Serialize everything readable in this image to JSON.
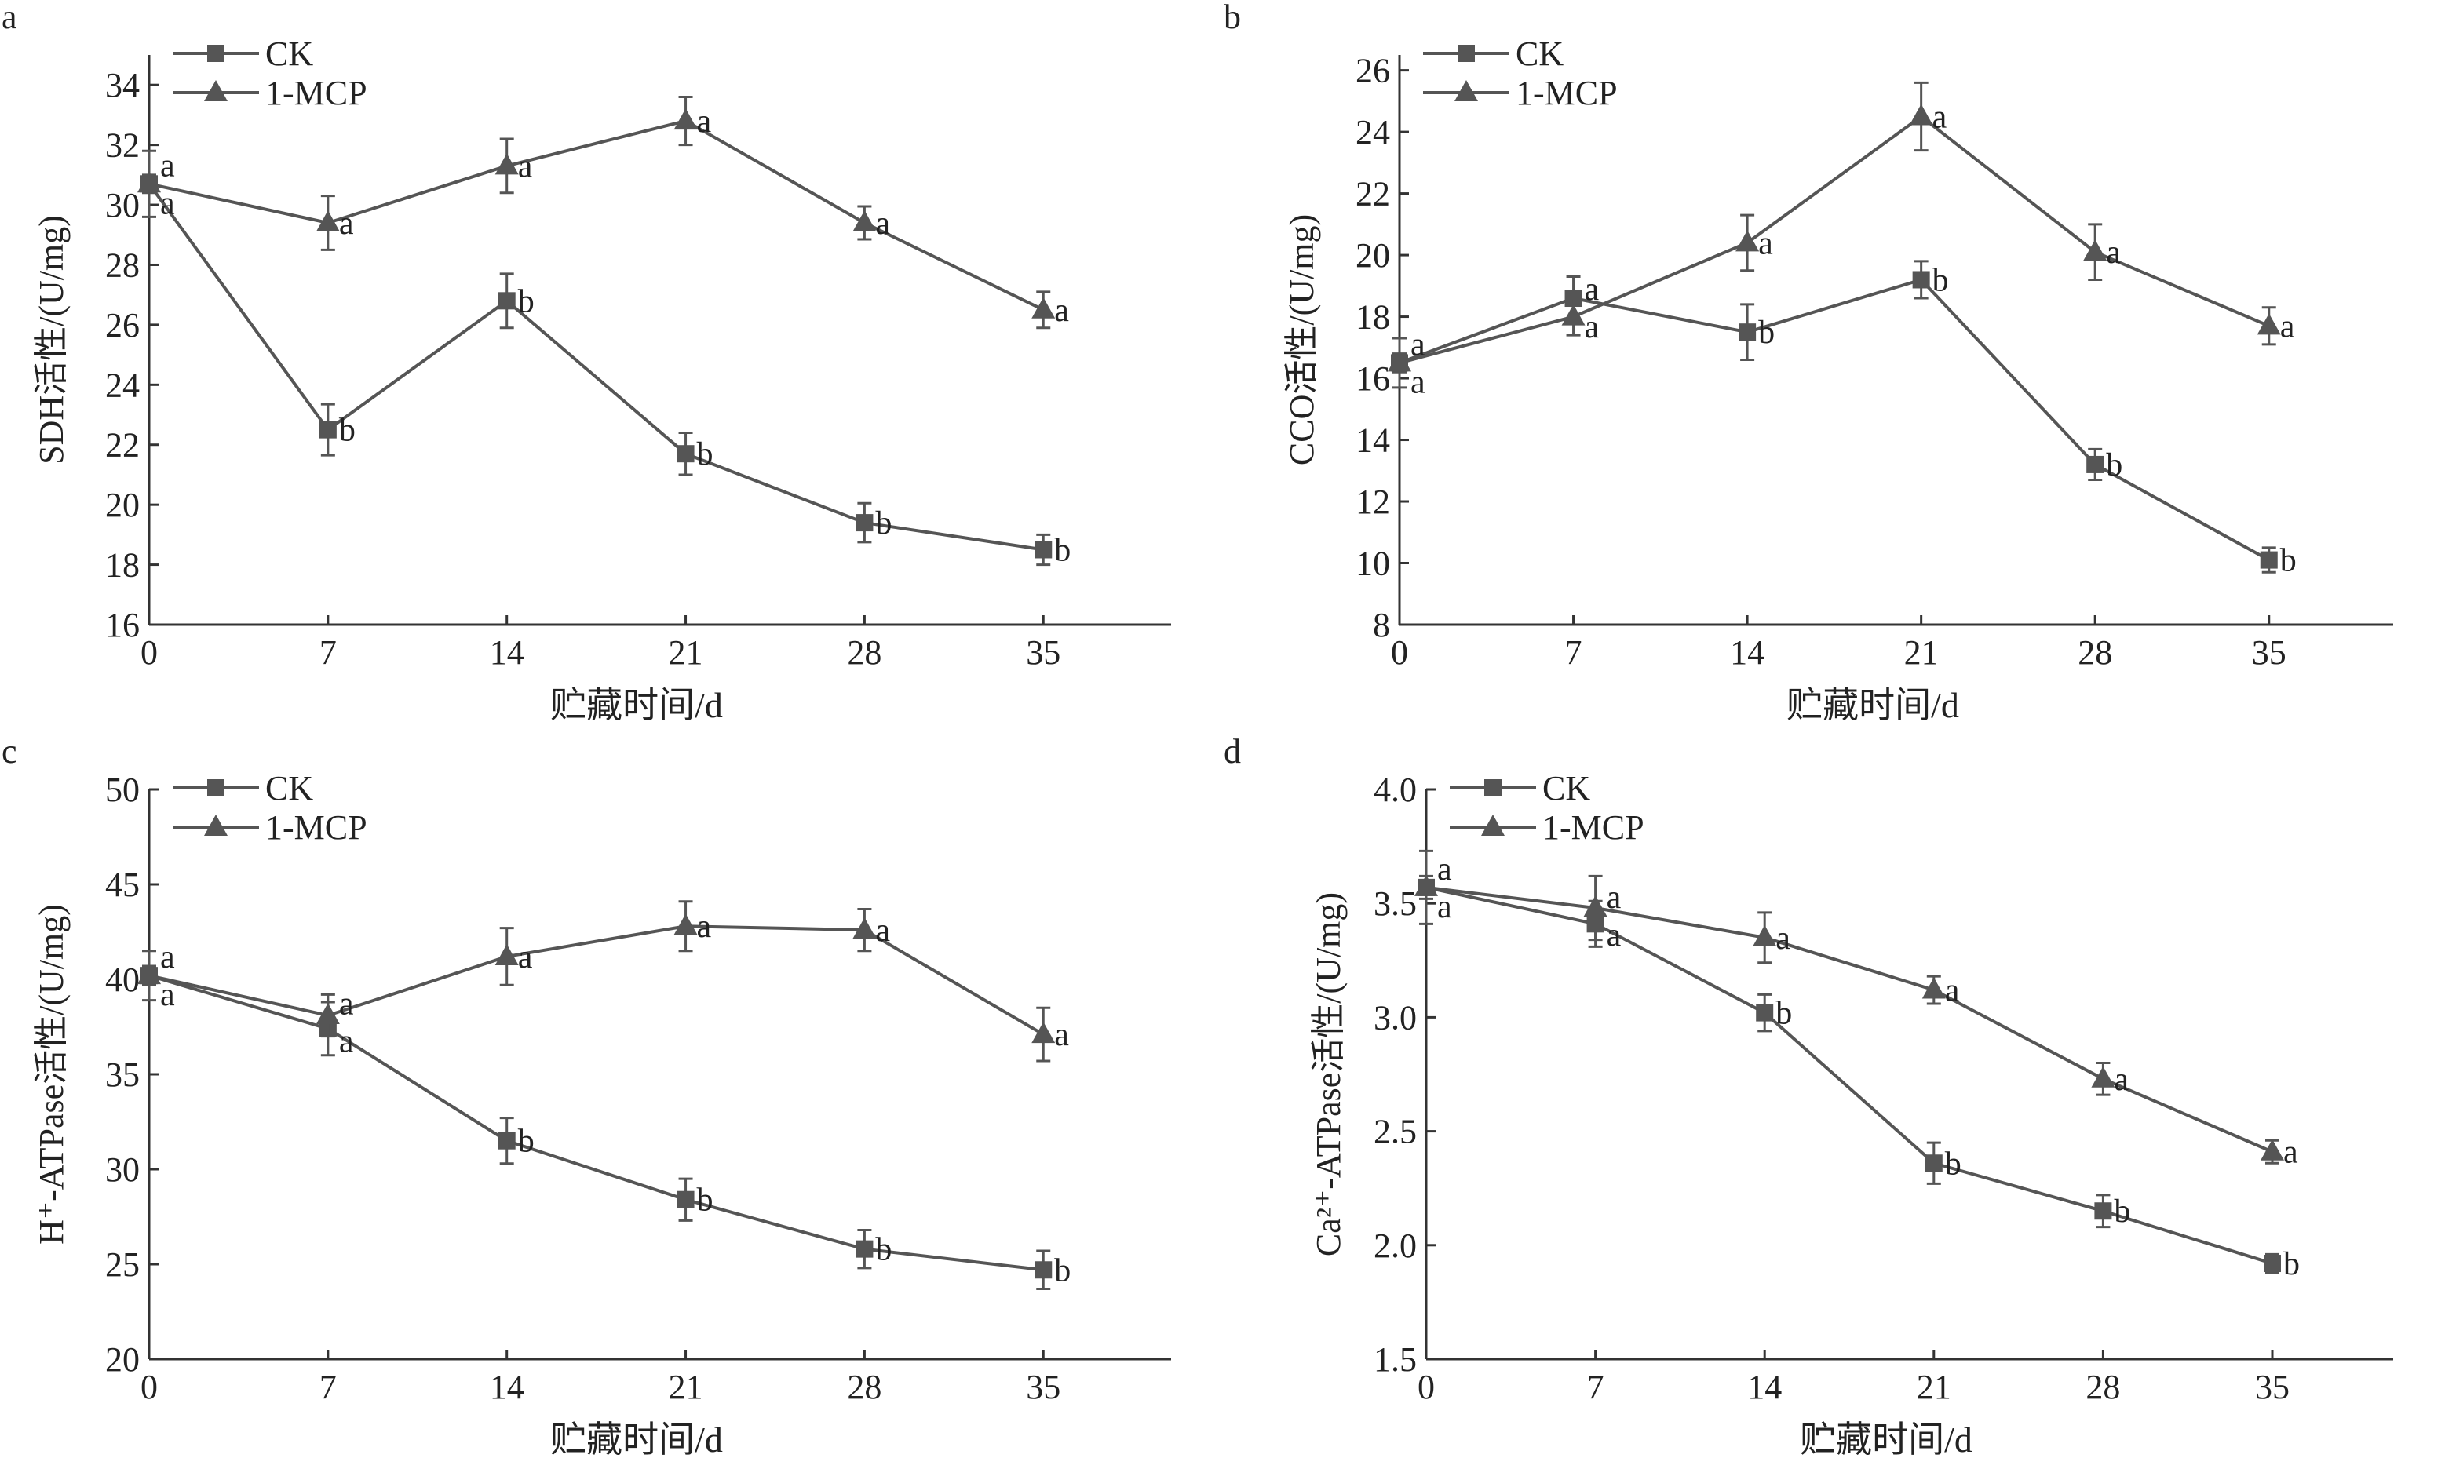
{
  "colors": {
    "line": "#555555",
    "axis": "#333333"
  },
  "chart_data": [
    {
      "type": "line",
      "panel_label": "a",
      "xlabel": "贮藏时间/d",
      "ylabel": "SDH活性/(U/mg)",
      "x": [
        0,
        7,
        14,
        21,
        28,
        35
      ],
      "xticks": [
        0,
        7,
        14,
        21,
        28,
        35
      ],
      "xlim": [
        0,
        40
      ],
      "ylim": [
        16,
        35
      ],
      "yticks": [
        16,
        18,
        20,
        22,
        24,
        26,
        28,
        30,
        32,
        34
      ],
      "ytick_decimals": 0,
      "grid": false,
      "legend": "top-left",
      "series": [
        {
          "name": "CK",
          "marker": "square",
          "values": [
            30.7,
            22.5,
            26.8,
            21.7,
            19.4,
            18.5
          ],
          "errors": [
            1.1,
            0.85,
            0.9,
            0.7,
            0.65,
            0.5
          ],
          "letters": [
            "a",
            "b",
            "b",
            "b",
            "b",
            "b"
          ]
        },
        {
          "name": "1-MCP",
          "marker": "triangle",
          "values": [
            30.7,
            29.4,
            31.3,
            32.8,
            29.4,
            26.5
          ],
          "errors": [
            0.3,
            0.9,
            0.9,
            0.8,
            0.55,
            0.6
          ],
          "letters": [
            "a",
            "a",
            "a",
            "a",
            "a",
            "a"
          ]
        }
      ]
    },
    {
      "type": "line",
      "panel_label": "b",
      "xlabel": "贮藏时间/d",
      "ylabel": "CCO活性/(U/mg)",
      "x": [
        0,
        7,
        14,
        21,
        28,
        35
      ],
      "xticks": [
        0,
        7,
        14,
        21,
        28,
        35
      ],
      "xlim": [
        0,
        40
      ],
      "ylim": [
        8,
        26.5
      ],
      "yticks": [
        8,
        10,
        12,
        14,
        16,
        18,
        20,
        22,
        24,
        26
      ],
      "ytick_decimals": 0,
      "grid": false,
      "legend": "top-left",
      "series": [
        {
          "name": "CK",
          "marker": "square",
          "values": [
            16.5,
            18.6,
            17.5,
            19.2,
            13.2,
            10.1
          ],
          "errors": [
            0.8,
            0.7,
            0.9,
            0.6,
            0.5,
            0.4
          ],
          "letters": [
            "a",
            "a",
            "b",
            "b",
            "b",
            "b"
          ]
        },
        {
          "name": "1-MCP",
          "marker": "triangle",
          "values": [
            16.5,
            18.0,
            20.4,
            24.5,
            20.1,
            17.7
          ],
          "errors": [
            0.3,
            0.6,
            0.9,
            1.1,
            0.9,
            0.6
          ],
          "letters": [
            "a",
            "a",
            "a",
            "a",
            "a",
            "a"
          ]
        }
      ]
    },
    {
      "type": "line",
      "panel_label": "c",
      "xlabel": "贮藏时间/d",
      "ylabel": "H⁺-ATPase活性/(U/mg)",
      "x": [
        0,
        7,
        14,
        21,
        28,
        35
      ],
      "xticks": [
        0,
        7,
        14,
        21,
        28,
        35
      ],
      "xlim": [
        0,
        40
      ],
      "ylim": [
        20,
        50
      ],
      "yticks": [
        20,
        25,
        30,
        35,
        40,
        45,
        50
      ],
      "ytick_decimals": 0,
      "grid": false,
      "legend": "top-left",
      "series": [
        {
          "name": "CK",
          "marker": "square",
          "values": [
            40.2,
            37.4,
            31.5,
            28.4,
            25.8,
            24.7
          ],
          "errors": [
            1.3,
            1.4,
            1.2,
            1.1,
            1.0,
            1.0
          ],
          "letters": [
            "a",
            "a",
            "b",
            "b",
            "b",
            "b"
          ]
        },
        {
          "name": "1-MCP",
          "marker": "triangle",
          "values": [
            40.2,
            38.1,
            41.2,
            42.8,
            42.6,
            37.1
          ],
          "errors": [
            0.5,
            1.1,
            1.5,
            1.3,
            1.1,
            1.4
          ],
          "letters": [
            "a",
            "a",
            "a",
            "a",
            "a",
            "a"
          ]
        }
      ]
    },
    {
      "type": "line",
      "panel_label": "d",
      "xlabel": "贮藏时间/d",
      "ylabel": "Ca²⁺-ATPase活性/(U/mg)",
      "x": [
        0,
        7,
        14,
        21,
        28,
        35
      ],
      "xticks": [
        0,
        7,
        14,
        21,
        28,
        35
      ],
      "xlim": [
        0,
        40
      ],
      "ylim": [
        1.5,
        4.0
      ],
      "yticks": [
        1.5,
        2.0,
        2.5,
        3.0,
        3.5,
        4.0
      ],
      "ytick_decimals": 1,
      "grid": false,
      "legend": "top-left",
      "series": [
        {
          "name": "CK",
          "marker": "square",
          "values": [
            3.57,
            3.41,
            3.02,
            2.36,
            2.15,
            1.92
          ],
          "errors": [
            0.16,
            0.1,
            0.08,
            0.09,
            0.07,
            0.04
          ],
          "letters": [
            "a",
            "a",
            "b",
            "b",
            "b",
            "b"
          ]
        },
        {
          "name": "1-MCP",
          "marker": "triangle",
          "values": [
            3.57,
            3.48,
            3.35,
            3.12,
            2.73,
            2.41
          ],
          "errors": [
            0.05,
            0.14,
            0.11,
            0.06,
            0.07,
            0.05
          ],
          "letters": [
            "a",
            "a",
            "a",
            "a",
            "a",
            "a"
          ]
        }
      ]
    }
  ]
}
